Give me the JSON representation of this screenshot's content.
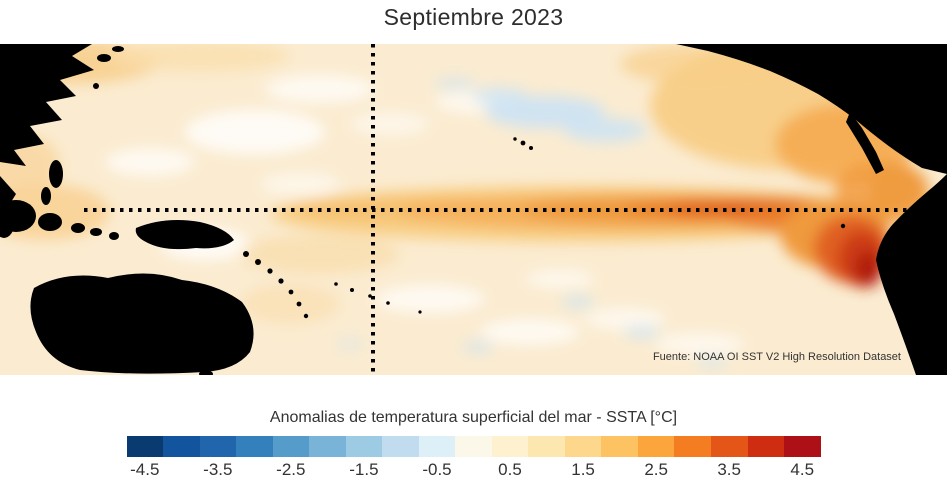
{
  "figure": {
    "title": "Septiembre 2023",
    "source": "Fuente: NOAA OI SST V2 High Resolution Dataset"
  },
  "colorbar": {
    "label": "Anomalias de temperatura superficial del mar - SSTA  [°C]",
    "ticks": [
      "-4.5",
      "-3.5",
      "-2.5",
      "-1.5",
      "-0.5",
      "0.5",
      "1.5",
      "2.5",
      "3.5",
      "4.5"
    ],
    "range": [
      -4.75,
      4.75
    ],
    "colors": [
      "#0a3b70",
      "#13549e",
      "#2166ac",
      "#3380bc",
      "#559cca",
      "#79b4d8",
      "#9dcbe4",
      "#c1dcee",
      "#def0f7",
      "#fbf8ea",
      "#fdf1cf",
      "#fde7b1",
      "#fdd88c",
      "#fdc261",
      "#fba53c",
      "#f47d21",
      "#e35617",
      "#cf2d12",
      "#ad1016"
    ]
  },
  "chart_data": {
    "type": "heatmap",
    "title": "Septiembre 2023",
    "variable": "Anomalias de temperatura superficial del mar - SSTA",
    "units": "°C",
    "region_shown": "Pacific Ocean basin (Asia/Australia at left, Americas at right, land masked in black)",
    "source": "Fuente: NOAA OI SST V2 High Resolution Dataset",
    "colorbar_ticks": [
      -4.5,
      -3.5,
      -2.5,
      -1.5,
      -0.5,
      0.5,
      1.5,
      2.5,
      3.5,
      4.5
    ],
    "colorbar_levels": [
      -4.75,
      -4.25,
      -3.75,
      -3.25,
      -2.75,
      -2.25,
      -1.75,
      -1.25,
      -0.75,
      -0.25,
      0.25,
      0.75,
      1.25,
      1.75,
      2.25,
      2.75,
      3.25,
      3.75,
      4.25,
      4.75
    ],
    "color_scale": [
      "#0a3b70",
      "#13549e",
      "#2166ac",
      "#3380bc",
      "#559cca",
      "#79b4d8",
      "#9dcbe4",
      "#c1dcee",
      "#def0f7",
      "#fbf8ea",
      "#fdf1cf",
      "#fde7b1",
      "#fdd88c",
      "#fdc261",
      "#fba53c",
      "#f47d21",
      "#e35617",
      "#cf2d12",
      "#ad1016"
    ],
    "land_color": "#000000",
    "reference_lines": [
      "horizontal dotted black line along the equator",
      "vertical dotted black line near the date line (~40% of map width)"
    ],
    "observed_anomalies": [
      {
        "region": "Eastern equatorial Pacific / Peru-Ecuador coast (El Niño core)",
        "anomaly_c": "+3.0 to +4.5"
      },
      {
        "region": "Central-eastern equatorial Pacific band",
        "anomaly_c": "+1.5 to +2.5"
      },
      {
        "region": "Western equatorial Pacific",
        "anomaly_c": "+0.5 to +1.0"
      },
      {
        "region": "Northeast Pacific off North America coast",
        "anomaly_c": "+1.0 to +2.0"
      },
      {
        "region": "North-central Pacific patch",
        "anomaly_c": "-0.5 to -1.0"
      },
      {
        "region": "Basin-wide background",
        "anomaly_c": "about +0.5"
      }
    ]
  }
}
